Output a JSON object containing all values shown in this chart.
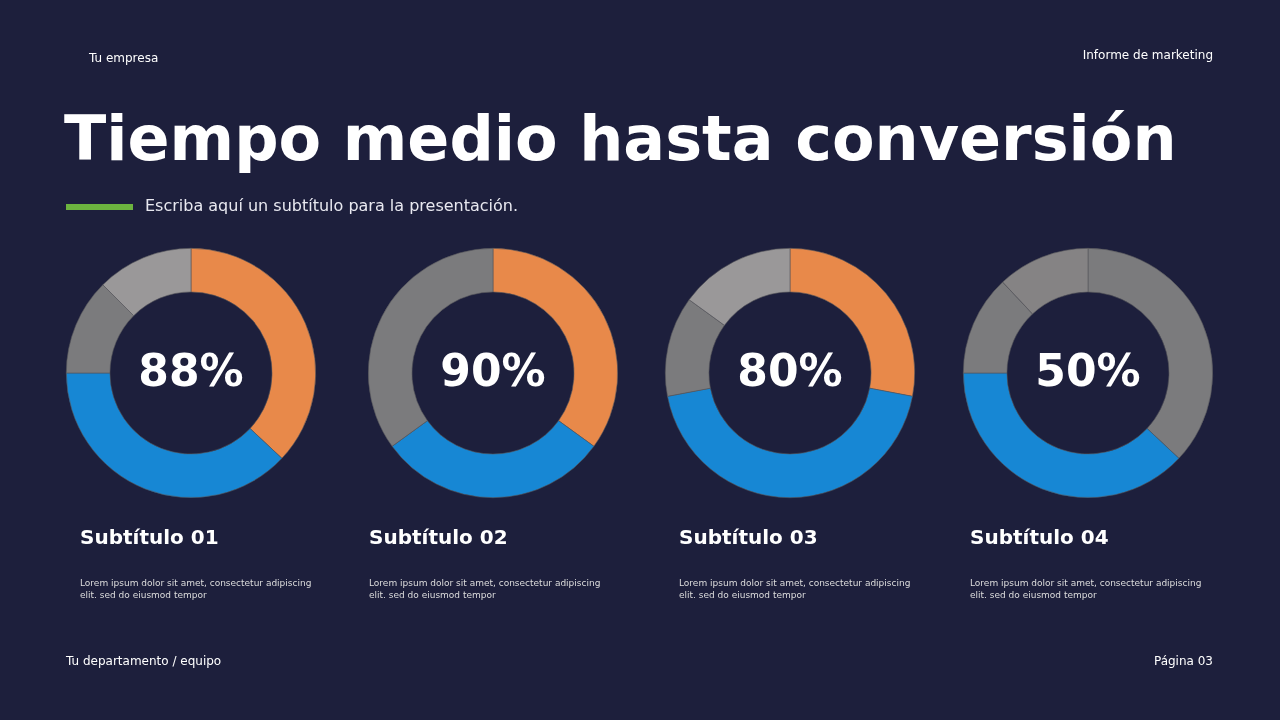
{
  "chart_data": [
    {
      "type": "other",
      "title": "Tiempo medio hasta conversión",
      "subtitle": "Escriba aquí un subtítulo para la presentación.",
      "annotations": [
        "Tu empresa",
        "Informe de marketing",
        "Tu departamento / equipo",
        "Página 03"
      ]
    },
    {
      "type": "donut",
      "title": "Subtítulo 01",
      "categories": [
        null,
        null,
        null,
        null
      ],
      "values": [
        37,
        38,
        12.5,
        12.5
      ],
      "colors": [
        "#e8894a",
        "#1787d4",
        "#7b7b7d",
        "#9a9899"
      ],
      "annotations": [
        "88%",
        "Lorem ipsum dolor sit amet, consectetur adipiscing elit. sed do eiusmod tempor"
      ]
    },
    {
      "type": "donut",
      "title": "Subtítulo 02",
      "categories": [
        null,
        null,
        null
      ],
      "values": [
        35,
        30,
        35
      ],
      "colors": [
        "#e8894a",
        "#1787d4",
        "#7b7b7d"
      ],
      "annotations": [
        "90%",
        "Lorem ipsum dolor sit amet, consectetur adipiscing elit. sed do eiusmod tempor"
      ]
    },
    {
      "type": "donut",
      "title": "Subtítulo 03",
      "categories": [
        null,
        null,
        null,
        null
      ],
      "values": [
        28,
        44,
        13,
        15
      ],
      "colors": [
        "#e8894a",
        "#1787d4",
        "#7b7b7d",
        "#9a9899"
      ],
      "annotations": [
        "80%",
        "Lorem ipsum dolor sit amet, consectetur adipiscing elit. sed do eiusmod tempor"
      ]
    },
    {
      "type": "donut",
      "title": "Subtítulo 04",
      "categories": [
        null,
        null,
        null,
        null
      ],
      "values": [
        37,
        38,
        13,
        12
      ],
      "colors": [
        "#7b7b7d",
        "#1787d4",
        "#7b7b7d",
        "#858384"
      ],
      "annotations": [
        "50%",
        "Lorem ipsum dolor sit amet, consectetur adipiscing elit. sed do eiusmod tempor"
      ]
    }
  ]
}
